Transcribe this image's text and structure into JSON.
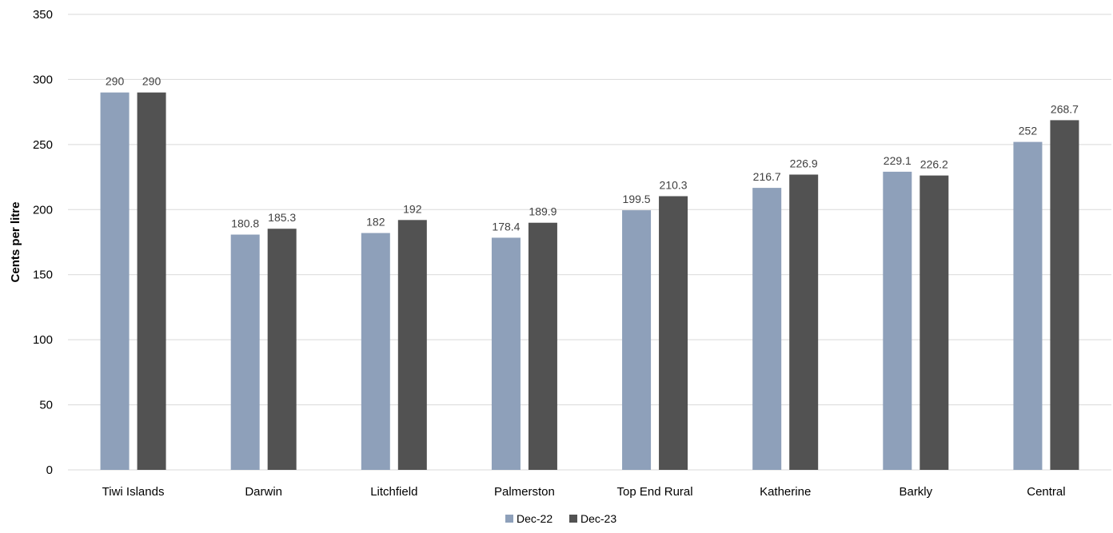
{
  "chart_data": {
    "type": "bar",
    "title": "",
    "xlabel": "",
    "ylabel": "Cents per litre",
    "ylim": [
      0,
      350
    ],
    "yticks": [
      0,
      50,
      100,
      150,
      200,
      250,
      300,
      350
    ],
    "grid": true,
    "legend_position": "bottom",
    "categories": [
      "Tiwi Islands",
      "Darwin",
      "Litchfield",
      "Palmerston",
      "Top End Rural",
      "Katherine",
      "Barkly",
      "Central"
    ],
    "series": [
      {
        "name": "Dec-22",
        "color": "#8ea0ba",
        "values": [
          290,
          180.8,
          182,
          178.4,
          199.5,
          216.7,
          229.1,
          252
        ]
      },
      {
        "name": "Dec-23",
        "color": "#525252",
        "values": [
          290,
          185.3,
          192,
          189.9,
          210.3,
          226.9,
          226.2,
          268.7
        ]
      }
    ]
  }
}
